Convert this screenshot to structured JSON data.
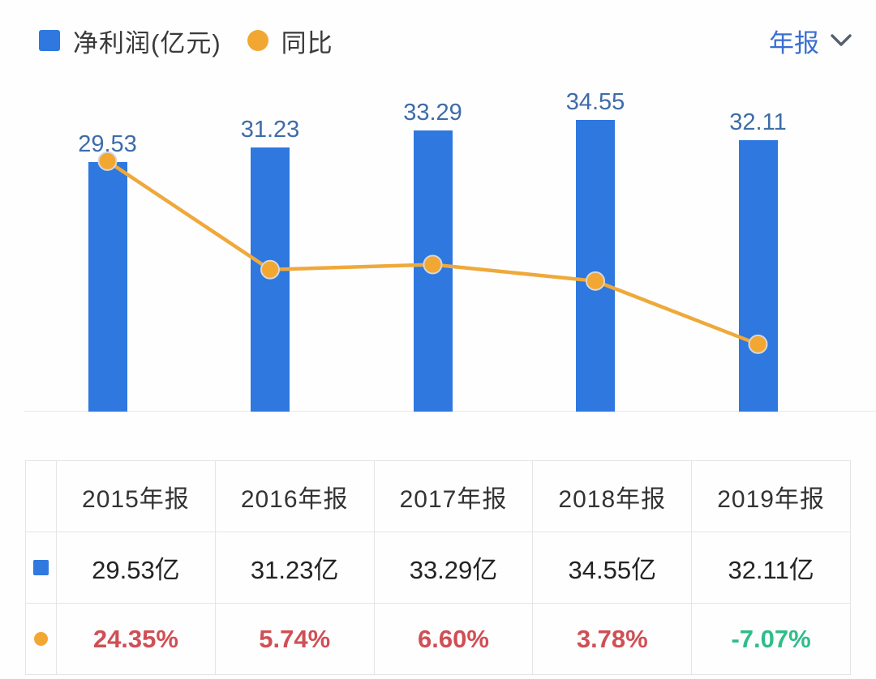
{
  "legend": {
    "bar_label": "净利润(亿元)",
    "line_label": "同比"
  },
  "period_selector": {
    "label": "年报",
    "icon": "chevron-down-icon"
  },
  "colors": {
    "bar_fill": "#2e78df",
    "bar_value_label": "#3e6ca8",
    "line_stroke": "#efa93b",
    "dot_fill": "#f2a733",
    "yoy_positive_red": "#d04f55",
    "yoy_negative_green": "#2fbd89",
    "selector_blue": "#3a6fd0",
    "legend_text": "#3a3a3a",
    "table_border": "#e5e5e5"
  },
  "chart_data": {
    "type": "bar",
    "categories": [
      "2015年报",
      "2016年报",
      "2017年报",
      "2018年报",
      "2019年报"
    ],
    "series": [
      {
        "name": "净利润(亿元)",
        "type": "bar",
        "values": [
          29.53,
          31.23,
          33.29,
          34.55,
          32.11
        ],
        "labels": [
          "29.53",
          "31.23",
          "33.29",
          "34.55",
          "32.11"
        ]
      },
      {
        "name": "同比",
        "type": "line",
        "values": [
          24.35,
          5.74,
          6.6,
          3.78,
          -7.07
        ],
        "labels": [
          "24.35%",
          "5.74%",
          "6.60%",
          "3.78%",
          "-7.07%"
        ]
      }
    ],
    "title": "",
    "xlabel": "",
    "ylabel": "",
    "bar_axis_min": 0,
    "legend_position": "top-left",
    "grid": false,
    "value_labels_shown": "bar-values-above-bars"
  },
  "table": {
    "headers": [
      "2015年报",
      "2016年报",
      "2017年报",
      "2018年报",
      "2019年报"
    ],
    "profit_row": [
      "29.53亿",
      "31.23亿",
      "33.29亿",
      "34.55亿",
      "32.11亿"
    ],
    "yoy_row": [
      "24.35%",
      "5.74%",
      "6.60%",
      "3.78%",
      "-7.07%"
    ]
  }
}
